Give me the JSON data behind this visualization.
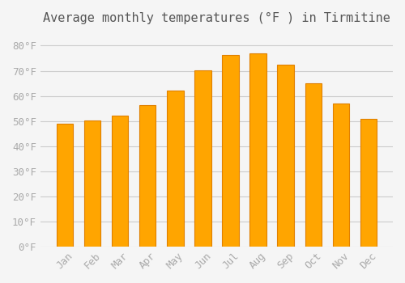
{
  "title": "Average monthly temperatures (°F ) in Tirmitine",
  "months": [
    "Jan",
    "Feb",
    "Mar",
    "Apr",
    "May",
    "Jun",
    "Jul",
    "Aug",
    "Sep",
    "Oct",
    "Nov",
    "Dec"
  ],
  "values": [
    49.0,
    50.2,
    52.3,
    56.3,
    62.2,
    70.2,
    76.2,
    77.0,
    72.3,
    65.0,
    57.0,
    51.0
  ],
  "bar_color": "#FFA500",
  "bar_edge_color": "#E08000",
  "background_color": "#F5F5F5",
  "grid_color": "#CCCCCC",
  "ylim": [
    0,
    85
  ],
  "yticks": [
    0,
    10,
    20,
    30,
    40,
    50,
    60,
    70,
    80
  ],
  "title_fontsize": 11,
  "tick_fontsize": 9,
  "tick_color": "#AAAAAA",
  "title_color": "#555555"
}
